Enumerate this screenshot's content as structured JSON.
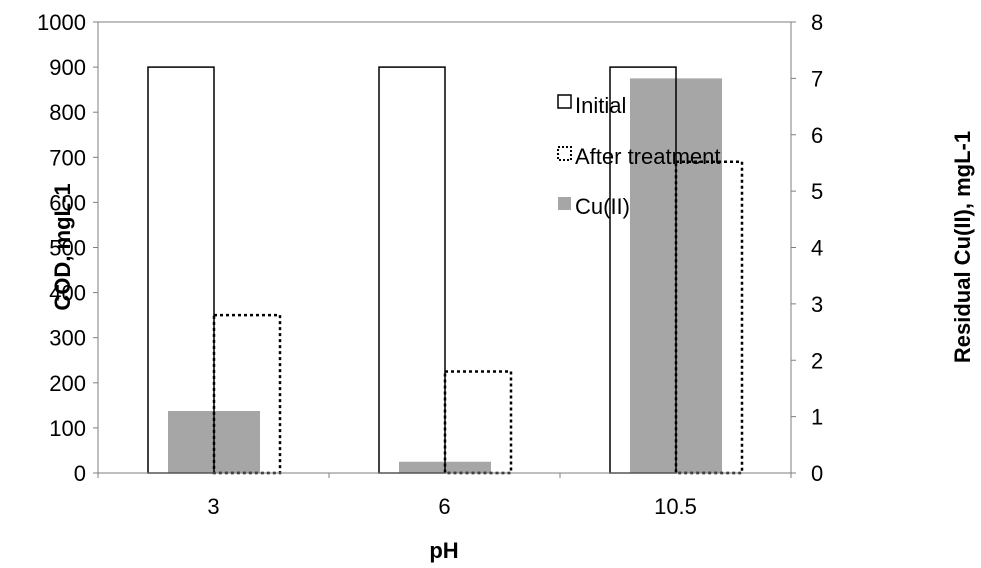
{
  "chart_data": {
    "type": "bar",
    "xlabel": "pH",
    "ylabel": "COD, mgL-1",
    "y2label": "Residual Cu(II), mgL-1",
    "categories": [
      "3",
      "6",
      "10.5"
    ],
    "ylim": [
      0,
      1000
    ],
    "y_ticks": [
      0,
      100,
      200,
      300,
      400,
      500,
      600,
      700,
      800,
      900,
      1000
    ],
    "y2lim": [
      0,
      8
    ],
    "y2_ticks": [
      0,
      1,
      2,
      3,
      4,
      5,
      6,
      7,
      8
    ],
    "series": [
      {
        "name": "Initial",
        "axis": "left",
        "values": [
          900,
          900,
          900
        ],
        "style": "outline-solid"
      },
      {
        "name": "After treatment",
        "axis": "left",
        "values": [
          350,
          225,
          690
        ],
        "style": "outline-dotted"
      },
      {
        "name": "Cu(II)",
        "axis": "right",
        "values": [
          1.1,
          0.2,
          7.0
        ],
        "style": "filled",
        "color": "#a6a6a6"
      }
    ],
    "legend_position": "top-right",
    "grid": false
  }
}
